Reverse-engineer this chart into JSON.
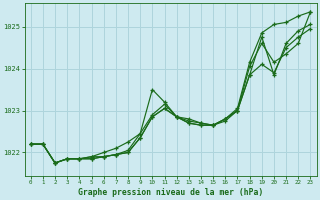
{
  "background_color": "#ceeaf0",
  "grid_color": "#aed4dc",
  "line_color": "#1a6b1a",
  "title": "Graphe pression niveau de la mer (hPa)",
  "xlim": [
    -0.5,
    23.5
  ],
  "ylim": [
    1021.45,
    1025.55
  ],
  "yticks": [
    1022,
    1023,
    1024,
    1025
  ],
  "xticks": [
    0,
    1,
    2,
    3,
    4,
    5,
    6,
    7,
    8,
    9,
    10,
    11,
    12,
    13,
    14,
    15,
    16,
    17,
    18,
    19,
    20,
    21,
    22,
    23
  ],
  "series": [
    {
      "x": [
        0,
        1,
        2,
        3,
        4,
        5,
        6,
        7,
        8,
        9,
        10,
        11,
        12,
        13,
        14,
        15,
        16,
        17,
        18,
        19,
        20,
        21,
        22,
        23
      ],
      "y": [
        1022.2,
        1022.2,
        1021.75,
        1021.85,
        1021.85,
        1021.9,
        1021.9,
        1021.95,
        1022.05,
        1022.45,
        1023.5,
        1023.2,
        1022.85,
        1022.75,
        1022.7,
        1022.65,
        1022.8,
        1023.05,
        1024.15,
        1024.85,
        1025.05,
        1025.1,
        1025.25,
        1025.35
      ]
    },
    {
      "x": [
        0,
        1,
        2,
        3,
        4,
        5,
        6,
        7,
        8,
        9,
        10,
        11,
        12,
        13,
        14,
        15,
        16,
        17,
        18,
        19,
        20,
        21,
        22,
        23
      ],
      "y": [
        1022.2,
        1022.2,
        1021.75,
        1021.85,
        1021.85,
        1021.85,
        1021.9,
        1021.95,
        1022.0,
        1022.35,
        1022.85,
        1023.05,
        1022.85,
        1022.7,
        1022.65,
        1022.65,
        1022.8,
        1023.0,
        1023.85,
        1024.75,
        1023.85,
        1024.6,
        1024.9,
        1025.05
      ]
    },
    {
      "x": [
        0,
        1,
        2,
        3,
        4,
        5,
        6,
        7,
        8,
        9,
        10,
        11,
        12,
        13,
        14,
        15,
        16,
        17,
        18,
        19,
        20,
        21,
        22,
        23
      ],
      "y": [
        1022.2,
        1022.2,
        1021.75,
        1021.85,
        1021.85,
        1021.85,
        1021.9,
        1021.95,
        1022.0,
        1022.35,
        1022.85,
        1023.05,
        1022.85,
        1022.7,
        1022.65,
        1022.65,
        1022.8,
        1023.0,
        1023.85,
        1024.1,
        1023.9,
        1024.5,
        1024.75,
        1024.95
      ]
    },
    {
      "x": [
        0,
        1,
        2,
        3,
        4,
        5,
        6,
        7,
        8,
        9,
        10,
        11,
        12,
        13,
        14,
        15,
        16,
        17,
        18,
        19,
        20,
        21,
        22,
        23
      ],
      "y": [
        1022.2,
        1022.2,
        1021.75,
        1021.85,
        1021.85,
        1021.9,
        1022.0,
        1022.1,
        1022.25,
        1022.45,
        1022.9,
        1023.15,
        1022.85,
        1022.8,
        1022.7,
        1022.65,
        1022.75,
        1023.0,
        1024.05,
        1024.6,
        1024.15,
        1024.35,
        1024.6,
        1025.35
      ]
    }
  ]
}
